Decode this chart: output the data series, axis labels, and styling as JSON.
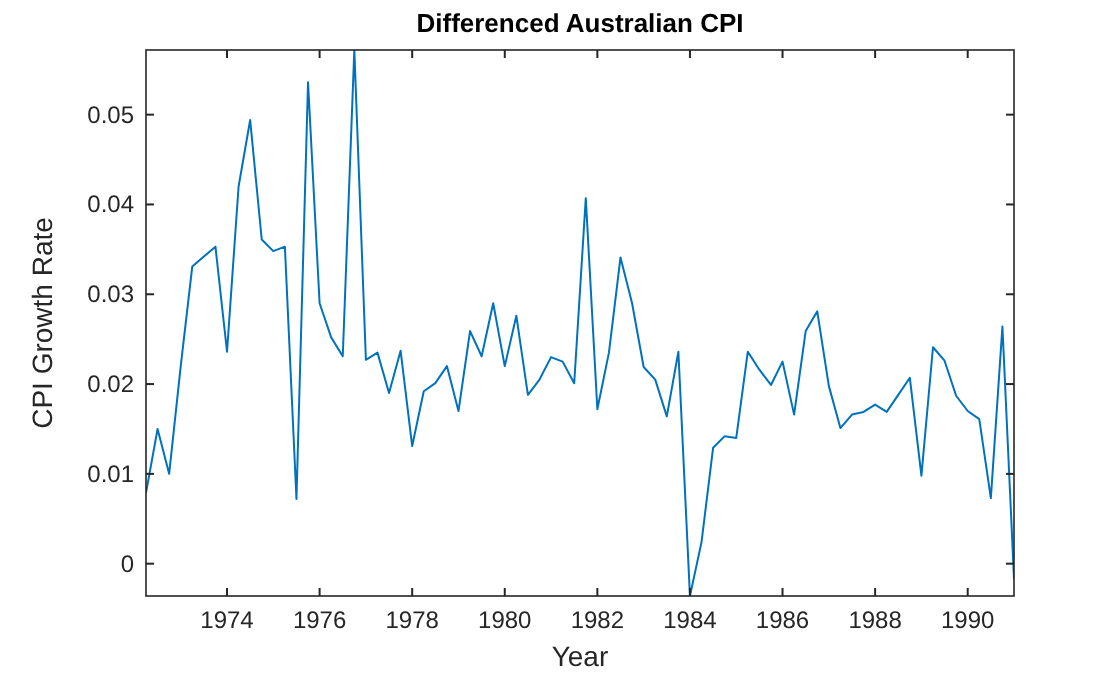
{
  "chart_data": {
    "type": "line",
    "title": "Differenced Australian CPI",
    "xlabel": "Year",
    "ylabel": "CPI Growth Rate",
    "x": [
      1972.25,
      1972.5,
      1972.75,
      1973,
      1973.25,
      1973.5,
      1973.75,
      1974,
      1974.25,
      1974.5,
      1974.75,
      1975,
      1975.25,
      1975.5,
      1975.75,
      1976,
      1976.25,
      1976.5,
      1976.75,
      1977,
      1977.25,
      1977.5,
      1977.75,
      1978,
      1978.25,
      1978.5,
      1978.75,
      1979,
      1979.25,
      1979.5,
      1979.75,
      1980,
      1980.25,
      1980.5,
      1980.75,
      1981,
      1981.25,
      1981.5,
      1981.75,
      1982,
      1982.25,
      1982.5,
      1982.75,
      1983,
      1983.25,
      1983.5,
      1983.75,
      1984,
      1984.25,
      1984.5,
      1984.75,
      1985,
      1985.25,
      1985.5,
      1985.75,
      1986,
      1986.25,
      1986.5,
      1986.75,
      1987,
      1987.25,
      1987.5,
      1987.75,
      1988,
      1988.25,
      1988.5,
      1988.75,
      1989,
      1989.25,
      1989.5,
      1989.75,
      1990,
      1990.25,
      1990.5,
      1990.75,
      1991
    ],
    "series": [
      {
        "color": "#0072bd",
        "values": [
          0.0079,
          0.015,
          0.01,
          0.022,
          0.0331,
          0.0342,
          0.0353,
          0.0236,
          0.042,
          0.0494,
          0.0361,
          0.0348,
          0.0353,
          0.0072,
          0.0536,
          0.029,
          0.0252,
          0.0231,
          0.0572,
          0.0227,
          0.0235,
          0.019,
          0.0237,
          0.0131,
          0.0192,
          0.0201,
          0.022,
          0.017,
          0.0259,
          0.0231,
          0.029,
          0.022,
          0.0276,
          0.0188,
          0.0205,
          0.023,
          0.0225,
          0.0201,
          0.0407,
          0.0172,
          0.0235,
          0.0341,
          0.029,
          0.0219,
          0.0205,
          0.0164,
          0.0236,
          -0.0036,
          0.0024,
          0.0129,
          0.0142,
          0.014,
          0.0236,
          0.0216,
          0.0199,
          0.0225,
          0.0166,
          0.0259,
          0.0281,
          0.0198,
          0.0151,
          0.0166,
          0.0169,
          0.0177,
          0.0169,
          0.0188,
          0.0207,
          0.0098,
          0.0241,
          0.0226,
          0.0187,
          0.017,
          0.0161,
          0.0073,
          0.0264,
          -0.0017
        ]
      }
    ],
    "xlim": [
      1972.25,
      1991
    ],
    "ylim": [
      -0.0036,
      0.0572
    ],
    "xticks": [
      1974,
      1976,
      1978,
      1980,
      1982,
      1984,
      1986,
      1988,
      1990
    ],
    "yticks": [
      0,
      0.01,
      0.02,
      0.03,
      0.04,
      0.05
    ],
    "marker": "none",
    "line_style": "solid"
  }
}
